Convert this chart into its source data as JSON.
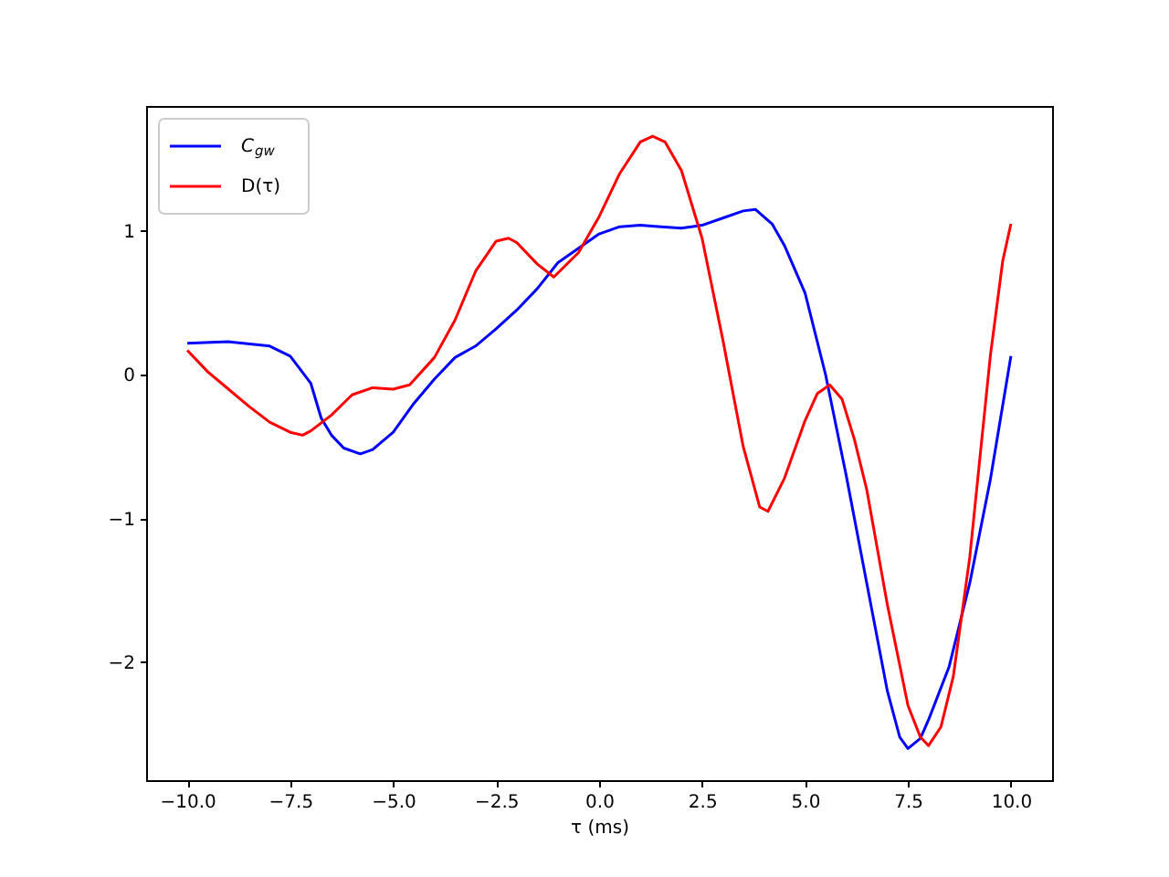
{
  "chart_data": {
    "type": "line",
    "xlabel": "τ (ms)",
    "xlim": [
      -11,
      11
    ],
    "ylim": [
      -2.82,
      1.87
    ],
    "xticks": [
      {
        "value": -10,
        "label": "−10.0"
      },
      {
        "value": -7.5,
        "label": "−7.5"
      },
      {
        "value": -5,
        "label": "−5.0"
      },
      {
        "value": -2.5,
        "label": "−2.5"
      },
      {
        "value": 0,
        "label": "0.0"
      },
      {
        "value": 2.5,
        "label": "2.5"
      },
      {
        "value": 5,
        "label": "5.0"
      },
      {
        "value": 7.5,
        "label": "7.5"
      },
      {
        "value": 10,
        "label": "10.0"
      }
    ],
    "yticks": [
      {
        "value": -2,
        "label": "−2"
      },
      {
        "value": -1,
        "label": "−1"
      },
      0,
      1
    ],
    "legend": "top left",
    "grid": false,
    "marker": "none",
    "line_style": "solid",
    "series": [
      {
        "name": "C$_{gw}$",
        "color": "#0000ff",
        "x": [
          -10,
          -9,
          -8,
          -7.5,
          -7,
          -6.75,
          -6.5,
          -6.2,
          -5.8,
          -5.5,
          -5,
          -4.5,
          -4,
          -3.5,
          -3,
          -2.5,
          -2,
          -1.5,
          -1,
          -0.5,
          0,
          0.5,
          1,
          1.5,
          2,
          2.5,
          3,
          3.5,
          3.8,
          4.2,
          4.5,
          5,
          5.5,
          6,
          6.5,
          7,
          7.3,
          7.5,
          7.8,
          8,
          8.5,
          9,
          9.5,
          10
        ],
        "values": [
          0.22,
          0.23,
          0.2,
          0.13,
          -0.06,
          -0.3,
          -0.42,
          -0.51,
          -0.55,
          -0.52,
          -0.4,
          -0.2,
          -0.03,
          0.12,
          0.2,
          0.32,
          0.45,
          0.6,
          0.78,
          0.88,
          0.98,
          1.03,
          1.04,
          1.03,
          1.02,
          1.04,
          1.09,
          1.14,
          1.15,
          1.05,
          0.9,
          0.57,
          0,
          -0.7,
          -1.45,
          -2.2,
          -2.52,
          -2.6,
          -2.53,
          -2.4,
          -2.03,
          -1.45,
          -0.73,
          0.13
        ]
      },
      {
        "name": "D(τ)",
        "color": "#ff0000",
        "x": [
          -10,
          -9.5,
          -9,
          -8.5,
          -8,
          -7.5,
          -7.2,
          -7,
          -6.5,
          -6,
          -5.5,
          -5,
          -4.6,
          -4,
          -3.5,
          -3,
          -2.5,
          -2.2,
          -2,
          -1.5,
          -1.1,
          -0.5,
          0,
          0.5,
          1,
          1.3,
          1.6,
          2,
          2.5,
          3,
          3.5,
          3.9,
          4.1,
          4.5,
          5,
          5.3,
          5.6,
          5.9,
          6.2,
          6.5,
          7,
          7.5,
          7.8,
          8,
          8.3,
          8.6,
          9,
          9.5,
          9.8,
          10
        ],
        "values": [
          0.17,
          0.02,
          -0.1,
          -0.22,
          -0.33,
          -0.4,
          -0.42,
          -0.39,
          -0.28,
          -0.14,
          -0.09,
          -0.1,
          -0.07,
          0.12,
          0.38,
          0.72,
          0.93,
          0.95,
          0.92,
          0.77,
          0.68,
          0.85,
          1.1,
          1.4,
          1.62,
          1.66,
          1.62,
          1.42,
          0.95,
          0.25,
          -0.5,
          -0.92,
          -0.95,
          -0.72,
          -0.32,
          -0.13,
          -0.07,
          -0.17,
          -0.45,
          -0.8,
          -1.6,
          -2.3,
          -2.52,
          -2.58,
          -2.45,
          -2.1,
          -1.27,
          0.13,
          0.79,
          1.05
        ]
      }
    ]
  }
}
